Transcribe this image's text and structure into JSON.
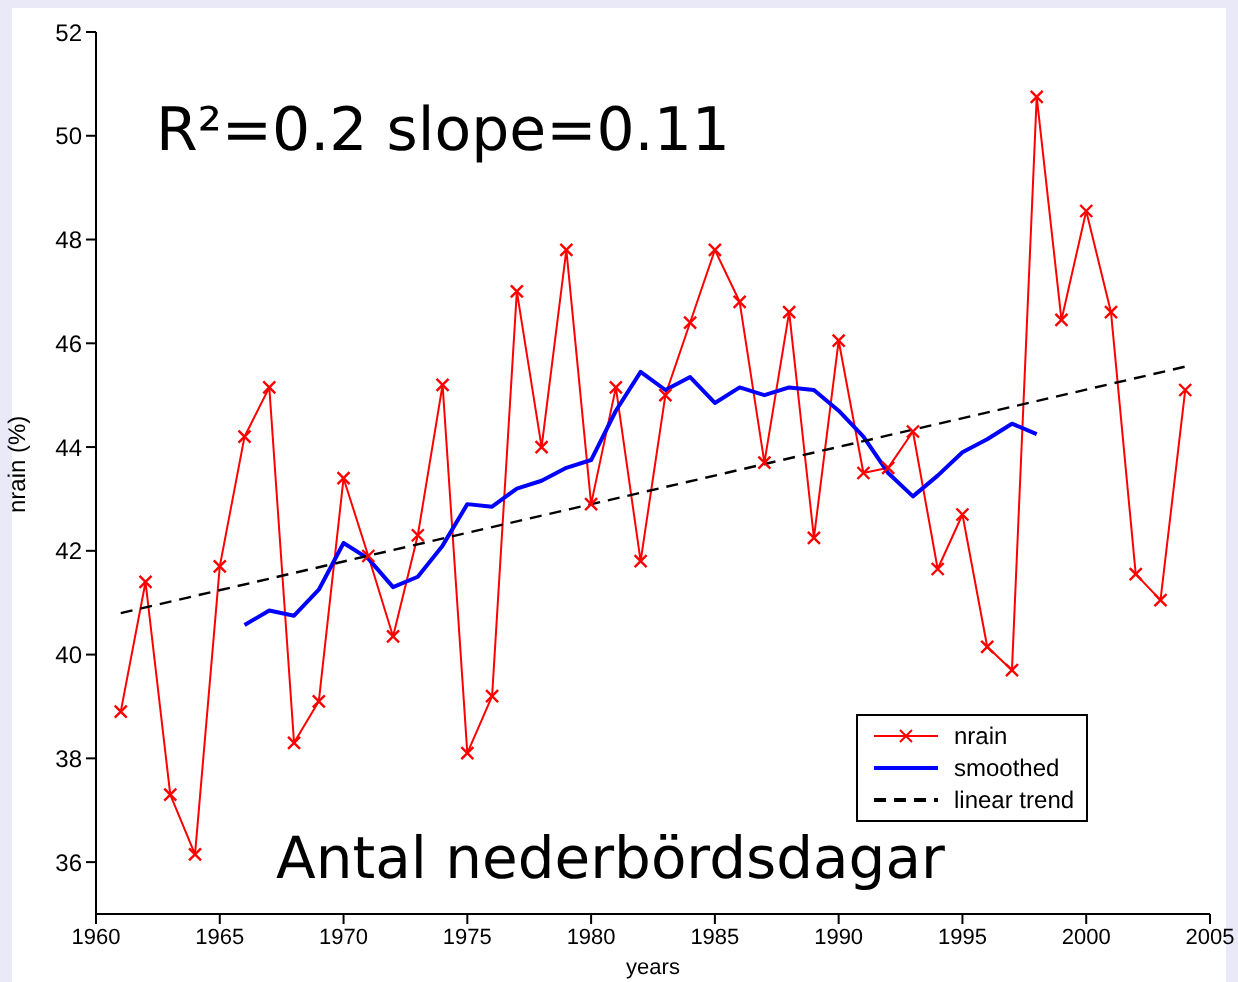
{
  "chart_data": {
    "type": "line",
    "xlabel": "years",
    "ylabel": "nrain (%)",
    "xlim": [
      1960,
      2005
    ],
    "xticks": [
      1960,
      1965,
      1970,
      1975,
      1980,
      1985,
      1990,
      1995,
      2000,
      2005
    ],
    "ylim": [
      35,
      52
    ],
    "yticks": [
      36,
      38,
      40,
      42,
      44,
      46,
      48,
      50,
      52
    ],
    "grid": false,
    "legend": "bottom right",
    "annotations": [
      "R²=0.2 slope=0.11",
      "Antal nederbördsdagar"
    ],
    "series": [
      {
        "name": "nrain",
        "color": "#ff0000",
        "marker": "cross",
        "line_style": "solid",
        "x": [
          1961,
          1962,
          1963,
          1964,
          1965,
          1966,
          1967,
          1968,
          1969,
          1970,
          1971,
          1972,
          1973,
          1974,
          1975,
          1976,
          1977,
          1978,
          1979,
          1980,
          1981,
          1982,
          1983,
          1984,
          1985,
          1986,
          1987,
          1988,
          1989,
          1990,
          1991,
          1992,
          1993,
          1994,
          1995,
          1996,
          1997,
          1998,
          1999,
          2000,
          2001,
          2002,
          2003,
          2004
        ],
        "values": [
          38.9,
          41.4,
          37.3,
          36.15,
          41.7,
          44.2,
          45.15,
          38.3,
          39.1,
          43.4,
          41.9,
          40.35,
          42.3,
          45.2,
          38.1,
          39.2,
          47.0,
          44.0,
          47.8,
          42.9,
          45.15,
          41.8,
          45.0,
          46.4,
          47.8,
          46.8,
          43.7,
          46.6,
          42.25,
          46.05,
          43.5,
          43.6,
          44.3,
          41.65,
          42.7,
          40.15,
          39.7,
          50.75,
          46.45,
          48.55,
          46.6,
          41.55,
          41.05,
          45.1
        ]
      },
      {
        "name": "smoothed",
        "color": "#0000ff",
        "marker": "none",
        "line_style": "solid",
        "x": [
          1966,
          1967,
          1968,
          1969,
          1970,
          1971,
          1972,
          1973,
          1974,
          1975,
          1976,
          1977,
          1978,
          1979,
          1980,
          1981,
          1982,
          1983,
          1984,
          1985,
          1986,
          1987,
          1988,
          1989,
          1990,
          1991,
          1992,
          1993,
          1994,
          1995,
          1996,
          1997,
          1998
        ],
        "values": [
          40.57,
          40.85,
          40.75,
          41.25,
          42.15,
          41.85,
          41.3,
          41.5,
          42.1,
          42.9,
          42.85,
          43.2,
          43.35,
          43.6,
          43.75,
          44.7,
          45.45,
          45.1,
          45.35,
          44.85,
          45.15,
          45.0,
          45.15,
          45.1,
          44.7,
          44.2,
          43.5,
          43.05,
          43.45,
          43.9,
          44.15,
          44.45,
          44.25
        ]
      },
      {
        "name": "linear trend",
        "color": "#000000",
        "marker": "none",
        "line_style": "dashed",
        "x": [
          1961,
          2004
        ],
        "values": [
          40.8,
          45.55
        ]
      }
    ]
  }
}
